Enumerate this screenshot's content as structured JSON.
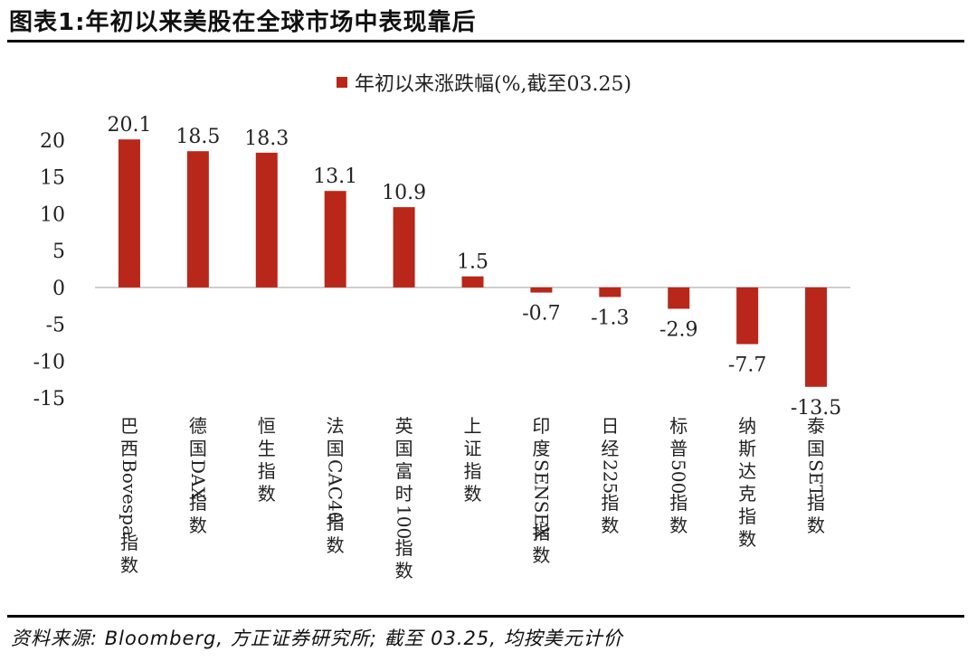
{
  "figure": {
    "title": "图表1:年初以来美股在全球市场中表现靠后",
    "source": "资料来源: Bloomberg, 方正证券研究所; 截至 03.25, 均按美元计价"
  },
  "colors": {
    "bar": "#B8271A",
    "axis": "#bfbfbf",
    "text": "#222222"
  },
  "chart_data": {
    "type": "bar",
    "title": "",
    "legend": {
      "position": "top",
      "entries": [
        "年初以来涨跌幅(%,截至03.25)"
      ]
    },
    "categories": [
      "巴西Bovespa指数",
      "德国DAX指数",
      "恒生指数",
      "法国CAC40指数",
      "英国富时100指数",
      "上证指数",
      "印度SENSEX指数",
      "日经225指数",
      "标普500指数",
      "纳斯达克指数",
      "泰国SET指数"
    ],
    "series": [
      {
        "name": "年初以来涨跌幅(%,截至03.25)",
        "values": [
          20.1,
          18.5,
          18.3,
          13.1,
          10.9,
          1.5,
          -0.7,
          -1.3,
          -2.9,
          -7.7,
          -13.5
        ],
        "data_labels": [
          "20.1",
          "18.5",
          "18.3",
          "13.1",
          "10.9",
          "1.5",
          "-0.7",
          "-1.3",
          "-2.9",
          "-7.7",
          "-13.5"
        ]
      }
    ],
    "ylim": [
      -15,
      20
    ],
    "yticks": [
      20,
      15,
      10,
      5,
      0,
      -5,
      -10,
      -15
    ],
    "ytick_labels": [
      "20",
      "15",
      "10",
      "5",
      "0",
      "-5",
      "-10",
      "-15"
    ],
    "xlabel": "",
    "ylabel": "",
    "grid": false
  }
}
